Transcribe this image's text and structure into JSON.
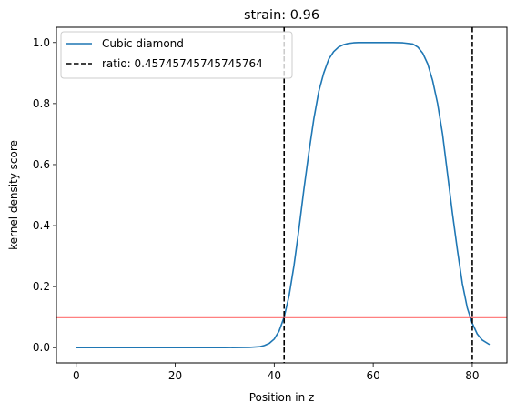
{
  "chart_data": {
    "type": "line",
    "title": "strain: 0.96",
    "xlabel": "Position in z",
    "ylabel": "kernel density score",
    "xlim": [
      -4,
      87
    ],
    "ylim": [
      -0.05,
      1.05
    ],
    "xticks": [
      0,
      20,
      40,
      60,
      80
    ],
    "yticks": [
      0.0,
      0.2,
      0.4,
      0.6,
      0.8,
      1.0
    ],
    "grid": false,
    "legend_position": "upper-left",
    "series": [
      {
        "name": "Cubic diamond",
        "color": "#1f77b4",
        "style": "solid",
        "x": [
          0,
          5,
          10,
          15,
          20,
          25,
          30,
          35,
          37,
          38,
          39,
          40,
          41,
          42,
          43,
          44,
          45,
          46,
          47,
          48,
          49,
          50,
          51,
          52,
          53,
          54,
          55,
          56,
          57,
          58,
          60,
          62,
          64,
          66,
          68,
          69,
          70,
          71,
          72,
          73,
          74,
          75,
          76,
          77,
          78,
          79,
          80,
          81,
          82,
          83.5
        ],
        "y": [
          0.0,
          0.0,
          0.0,
          0.0,
          0.0,
          0.0,
          0.0,
          0.001,
          0.003,
          0.007,
          0.014,
          0.028,
          0.055,
          0.1,
          0.17,
          0.27,
          0.39,
          0.52,
          0.64,
          0.75,
          0.84,
          0.9,
          0.945,
          0.97,
          0.985,
          0.993,
          0.997,
          0.999,
          1.0,
          1.0,
          1.0,
          1.0,
          1.0,
          0.999,
          0.995,
          0.985,
          0.965,
          0.93,
          0.875,
          0.8,
          0.7,
          0.57,
          0.44,
          0.32,
          0.21,
          0.13,
          0.08,
          0.045,
          0.025,
          0.01
        ]
      }
    ],
    "vlines": {
      "label": "ratio: 0.45745745745745764",
      "color": "#000000",
      "style": "dashed",
      "x": [
        42,
        80
      ]
    },
    "hline": {
      "y": 0.1,
      "color": "#ff0000"
    }
  }
}
